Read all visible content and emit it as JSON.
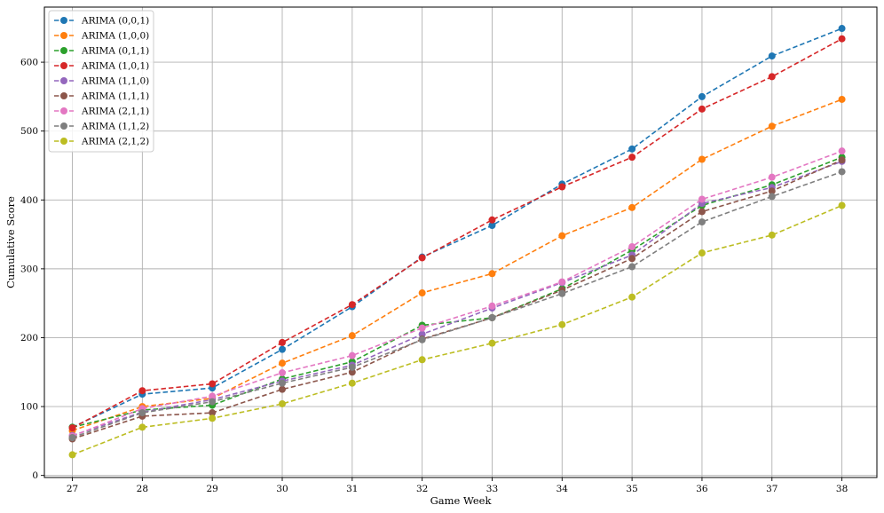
{
  "chart_data": {
    "type": "line",
    "xlabel": "Game Week",
    "ylabel": "Cumulative Score",
    "x": [
      27,
      28,
      29,
      30,
      31,
      32,
      33,
      34,
      35,
      36,
      37,
      38
    ],
    "xlim": [
      26.6,
      38.5
    ],
    "ylim": [
      -3,
      680
    ],
    "yticks": [
      0,
      100,
      200,
      300,
      400,
      500,
      600
    ],
    "grid": true,
    "legend_position": "top-left",
    "line_style": "dashed",
    "marker": "circle",
    "series": [
      {
        "name": "ARIMA (0,0,1)",
        "color": "#1f77b4",
        "values": [
          70,
          118,
          127,
          183,
          245,
          317,
          363,
          423,
          474,
          550,
          609,
          649
        ]
      },
      {
        "name": "ARIMA (1,0,0)",
        "color": "#ff7f0e",
        "values": [
          65,
          100,
          112,
          163,
          203,
          265,
          293,
          348,
          389,
          459,
          507,
          546
        ]
      },
      {
        "name": "ARIMA (0,1,1)",
        "color": "#2ca02c",
        "values": [
          70,
          95,
          102,
          140,
          165,
          218,
          229,
          271,
          327,
          392,
          422,
          462
        ]
      },
      {
        "name": "ARIMA (1,0,1)",
        "color": "#d62728",
        "values": [
          69,
          123,
          133,
          193,
          248,
          316,
          371,
          419,
          462,
          532,
          579,
          634
        ]
      },
      {
        "name": "ARIMA (1,1,0)",
        "color": "#9467bd",
        "values": [
          58,
          92,
          110,
          137,
          160,
          205,
          243,
          280,
          320,
          395,
          418,
          456
        ]
      },
      {
        "name": "ARIMA (1,1,1)",
        "color": "#8c564b",
        "values": [
          53,
          86,
          91,
          125,
          150,
          198,
          229,
          269,
          315,
          383,
          413,
          458
        ]
      },
      {
        "name": "ARIMA (2,1,1)",
        "color": "#e377c2",
        "values": [
          57,
          97,
          115,
          149,
          174,
          214,
          246,
          281,
          332,
          401,
          433,
          471
        ]
      },
      {
        "name": "ARIMA (1,1,2)",
        "color": "#7f7f7f",
        "values": [
          55,
          91,
          107,
          134,
          157,
          197,
          229,
          264,
          303,
          368,
          405,
          441
        ]
      },
      {
        "name": "ARIMA (2,1,2)",
        "color": "#bcbd22",
        "values": [
          30,
          70,
          83,
          104,
          134,
          168,
          192,
          219,
          259,
          323,
          349,
          392
        ]
      }
    ]
  }
}
